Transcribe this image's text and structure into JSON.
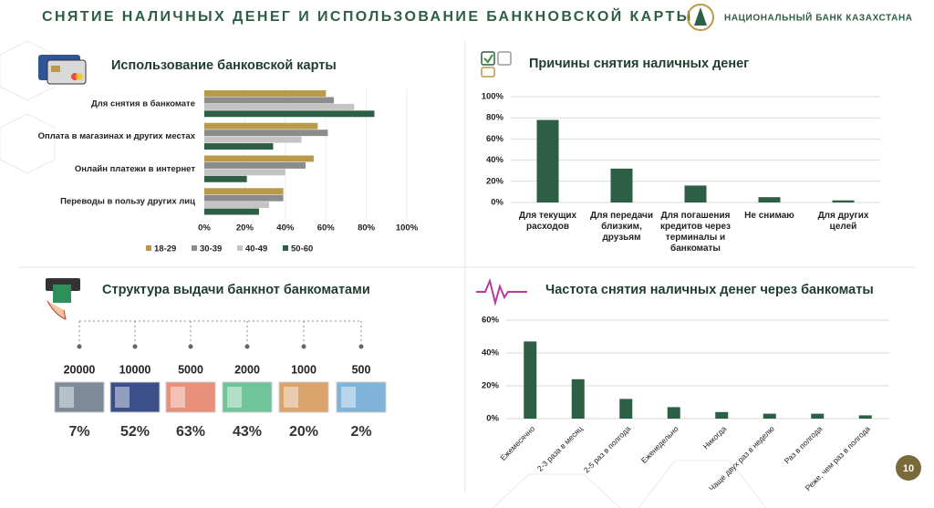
{
  "header": {
    "title": "СНЯТИЕ НАЛИЧНЫХ ДЕНЕГ И ИСПОЛЬЗОВАНИЕ БАНКНОВСКОЙ КАРТЫ",
    "organization": "НАЦИОНАЛЬНЫЙ БАНК КАЗАХСТАНА",
    "page_number": "10"
  },
  "chart_data": [
    {
      "type": "hbar",
      "title": "Использование банковской карты",
      "categories": [
        "Для снятия в банкомате",
        "Оплата в магазинах и других местах",
        "Онлайн платежи в интернет",
        "Переводы в пользу других лиц"
      ],
      "series": [
        {
          "name": "18-29",
          "color": "#b99a4a",
          "values": [
            60,
            56,
            54,
            39
          ]
        },
        {
          "name": "30-39",
          "color": "#8c8c8c",
          "values": [
            64,
            61,
            50,
            39
          ]
        },
        {
          "name": "40-49",
          "color": "#c4c4c4",
          "values": [
            74,
            48,
            40,
            32
          ]
        },
        {
          "name": "50-60",
          "color": "#2d5e46",
          "values": [
            84,
            34,
            21,
            27
          ]
        }
      ],
      "xlim": [
        0,
        100
      ],
      "xticks": [
        {
          "value": 0,
          "label": "0%"
        },
        {
          "value": 20,
          "label": "20%"
        },
        {
          "value": 40,
          "label": "40%"
        },
        {
          "value": 60,
          "label": "60%"
        },
        {
          "value": 80,
          "label": "80%"
        },
        {
          "value": 100,
          "label": "100%"
        }
      ],
      "grid": true,
      "legend": "bottom"
    },
    {
      "type": "bar",
      "title": "Причины снятия наличных денег",
      "categories": [
        "Для текущих расходов",
        "Для передачи близким, друзьям",
        "Для погашения кредитов через терминалы и банкоматы",
        "Не снимаю",
        "Для других целей"
      ],
      "values": [
        78,
        32,
        16,
        5,
        2
      ],
      "color": "#2d5e46",
      "ylim": [
        0,
        100
      ],
      "yticks": [
        {
          "value": 0,
          "label": "0%"
        },
        {
          "value": 20,
          "label": "20%"
        },
        {
          "value": 40,
          "label": "40%"
        },
        {
          "value": 60,
          "label": "60%"
        },
        {
          "value": 80,
          "label": "80%"
        },
        {
          "value": 100,
          "label": "100%"
        }
      ],
      "grid": true
    },
    {
      "type": "bar",
      "title": "Частота снятия наличных денег через банкоматы",
      "categories": [
        "Ежемесячно",
        "2-3 раза в месяц",
        "2-5 раз в полгода",
        "Еженедельно",
        "Никогда",
        "Чаще двух раз в неделю",
        "Раз в полгода",
        "Реже, чем раз в полгода"
      ],
      "values": [
        47,
        24,
        12,
        7,
        4,
        3,
        3,
        2
      ],
      "color": "#2d5e46",
      "ylim": [
        0,
        60
      ],
      "yticks": [
        {
          "value": 0,
          "label": "0%"
        },
        {
          "value": 20,
          "label": "20%"
        },
        {
          "value": 40,
          "label": "40%"
        },
        {
          "value": 60,
          "label": "60%"
        }
      ],
      "grid": true
    }
  ],
  "banknotes": {
    "title": "Структура выдачи банкнот банкоматами",
    "items": [
      {
        "denomination": "20000",
        "share": "7%"
      },
      {
        "denomination": "10000",
        "share": "52%"
      },
      {
        "denomination": "5000",
        "share": "63%"
      },
      {
        "denomination": "2000",
        "share": "43%"
      },
      {
        "denomination": "1000",
        "share": "20%"
      },
      {
        "denomination": "500",
        "share": "2%"
      }
    ]
  }
}
